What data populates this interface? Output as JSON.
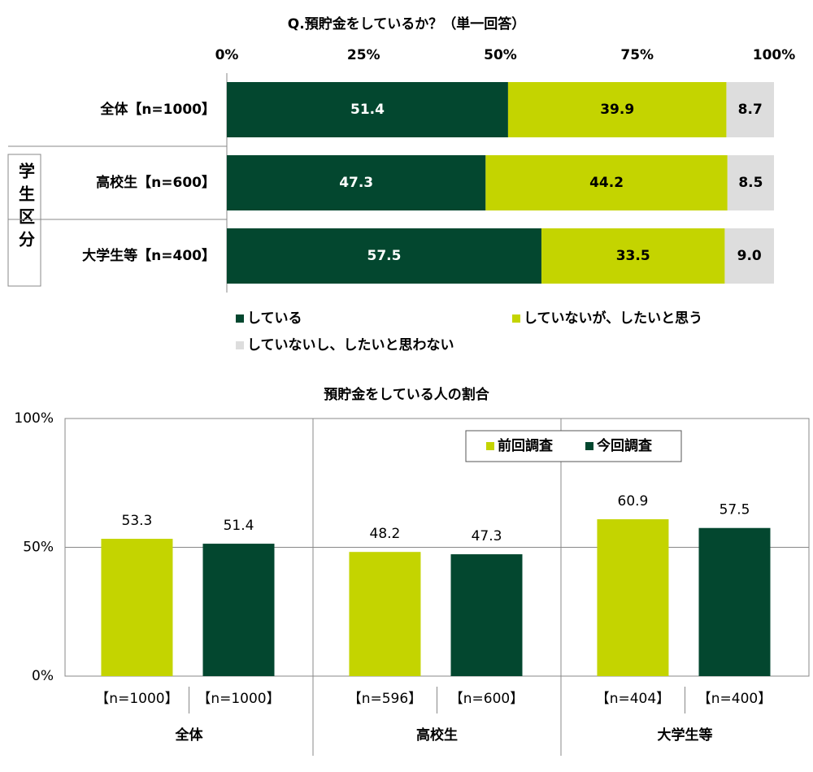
{
  "chart_data": [
    {
      "type": "stacked-bar-horizontal",
      "title": "Q.預貯金をしているか？（単一回答）",
      "group_label": "学生区分",
      "categories": [
        "全体【n=1000】",
        "高校生【n=600】",
        "大学生等【n=400】"
      ],
      "series": [
        {
          "name": "している",
          "color": "#03472f",
          "values": [
            51.4,
            47.3,
            57.5
          ]
        },
        {
          "name": "していないが、したいと思う",
          "color": "#c4d400",
          "values": [
            39.9,
            44.2,
            33.5
          ]
        },
        {
          "name": "していないし、したいと思わない",
          "color": "#dddddd",
          "values": [
            8.7,
            8.5,
            9.0
          ],
          "value_labels": [
            "8.7",
            "8.5",
            "9.0"
          ]
        }
      ],
      "xlim": [
        0,
        100
      ],
      "xticks": [
        {
          "value": 0,
          "label": "0%"
        },
        {
          "value": 25,
          "label": "25%"
        },
        {
          "value": 50,
          "label": "50%"
        },
        {
          "value": 75,
          "label": "75%"
        },
        {
          "value": 100,
          "label": "100%"
        }
      ]
    },
    {
      "type": "bar",
      "title": "預貯金をしている人の割合",
      "categories": [
        "全体",
        "高校生",
        "大学生等"
      ],
      "series": [
        {
          "name": "前回調査",
          "color": "#c4d400",
          "values": [
            53.3,
            48.2,
            60.9
          ],
          "sample_labels": [
            "【n=1000】",
            "【n=596】",
            "【n=404】"
          ]
        },
        {
          "name": "今回調査",
          "color": "#03472f",
          "values": [
            51.4,
            47.3,
            57.5
          ],
          "sample_labels": [
            "【n=1000】",
            "【n=600】",
            "【n=400】"
          ]
        }
      ],
      "ylim": [
        0,
        100
      ],
      "yticks": [
        {
          "value": 0,
          "label": "0%"
        },
        {
          "value": 50,
          "label": "50%"
        },
        {
          "value": 100,
          "label": "100%"
        }
      ],
      "grid": true
    }
  ]
}
